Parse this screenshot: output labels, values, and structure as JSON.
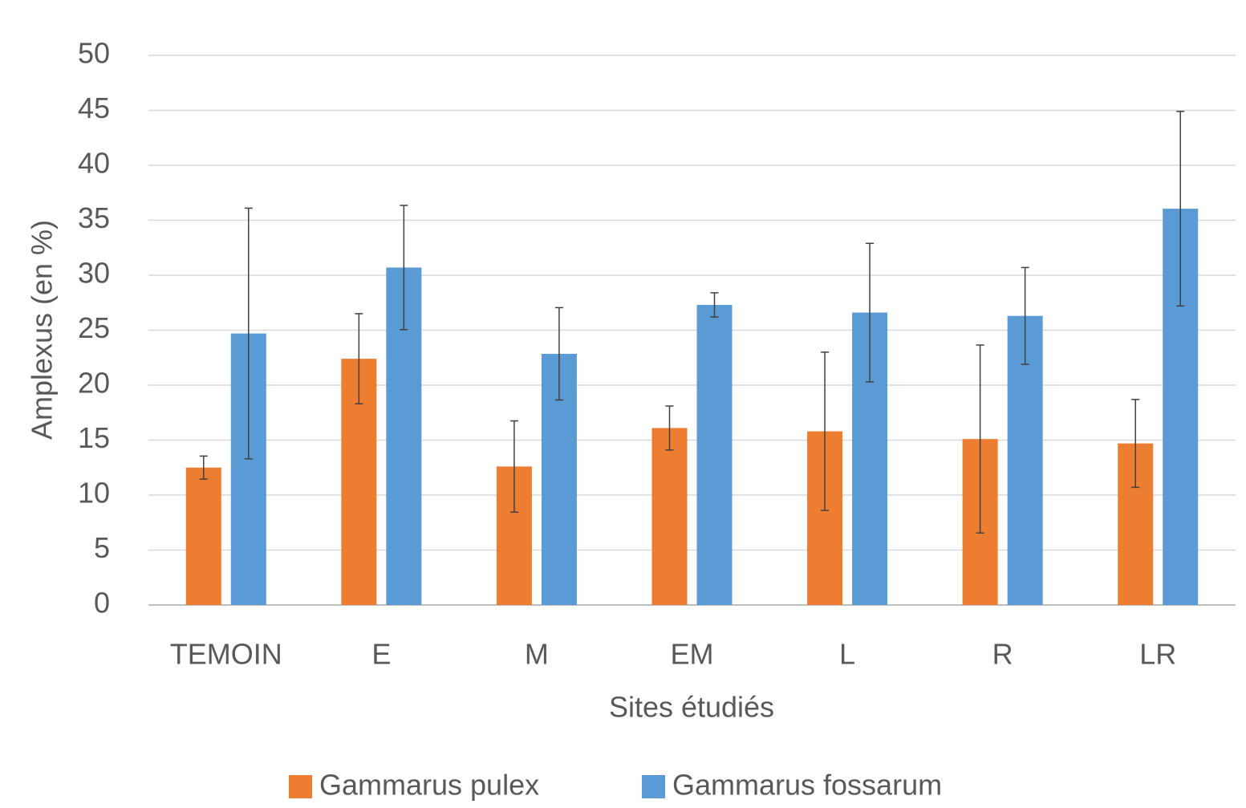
{
  "chart_data": {
    "type": "bar",
    "categories": [
      "TEMOIN",
      "E",
      "M",
      "EM",
      "L",
      "R",
      "LR"
    ],
    "series": [
      {
        "name": "Gammarus pulex",
        "color": "#ed7d31",
        "values": [
          12.5,
          22.4,
          12.6,
          16.1,
          15.8,
          15.1,
          14.7
        ],
        "errors": [
          1.05,
          4.1,
          4.15,
          2.0,
          7.2,
          8.55,
          4.0
        ]
      },
      {
        "name": "Gammarus fossarum",
        "color": "#5b9bd5",
        "values": [
          24.7,
          30.7,
          22.85,
          27.3,
          26.6,
          26.3,
          36.05
        ],
        "errors": [
          11.4,
          5.65,
          4.2,
          1.1,
          6.3,
          4.4,
          8.85
        ]
      }
    ],
    "xlabel": "Sites étudiés",
    "ylabel": "Amplexus (en %)",
    "ylim": [
      0,
      50
    ],
    "yticks": [
      0,
      5,
      10,
      15,
      20,
      25,
      30,
      35,
      40,
      45,
      50
    ],
    "grid": true,
    "legend": "bottom"
  }
}
